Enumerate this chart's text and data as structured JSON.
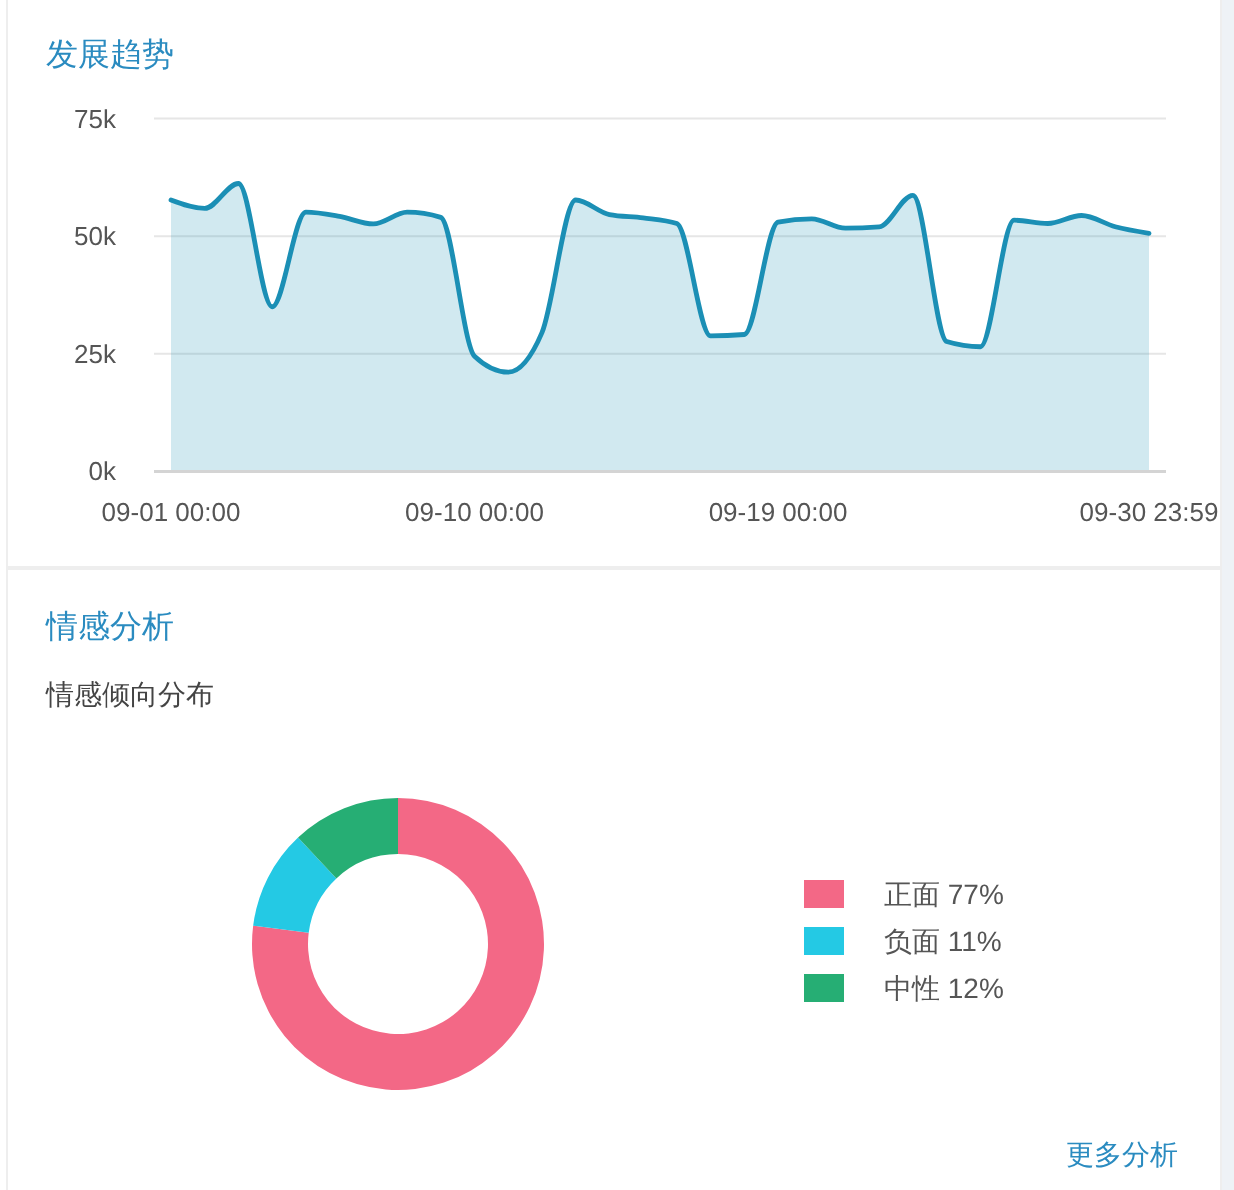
{
  "chart_data": [
    {
      "type": "area",
      "title": "发展趋势",
      "categories": [
        "09-01 00:00",
        null,
        null,
        null,
        null,
        null,
        null,
        null,
        null,
        "09-10 00:00",
        null,
        null,
        null,
        null,
        null,
        null,
        null,
        null,
        "09-19 00:00",
        null,
        null,
        null,
        null,
        null,
        null,
        null,
        null,
        null,
        null,
        "09-30 23:59"
      ],
      "series": [
        {
          "color": "#1b8fb5",
          "values": [
            57700,
            55900,
            61200,
            35000,
            55100,
            54200,
            52600,
            55100,
            54000,
            24500,
            21100,
            29500,
            57700,
            54600,
            53900,
            52700,
            28800,
            29100,
            53000,
            53700,
            51700,
            52000,
            58700,
            27600,
            26500,
            53400,
            52700,
            54400,
            52000,
            50600
          ]
        }
      ],
      "ylim": [
        0,
        75000
      ],
      "yticks": [
        {
          "value": 0,
          "label": "0k"
        },
        {
          "value": 25000,
          "label": "25k"
        },
        {
          "value": 50000,
          "label": "50k"
        },
        {
          "value": 75000,
          "label": "75k"
        }
      ],
      "grid": "y"
    },
    {
      "type": "donut",
      "title": "情感分析",
      "subtitle": "情感倾向分布",
      "categories": [
        "正面 77%",
        "负面 11%",
        "中性 12%"
      ],
      "values": [
        77,
        11,
        12
      ],
      "colors": [
        "#f36886",
        "#24c9e4",
        "#26ae74"
      ],
      "legend": "right",
      "annotations": [
        "更多分析"
      ]
    }
  ]
}
